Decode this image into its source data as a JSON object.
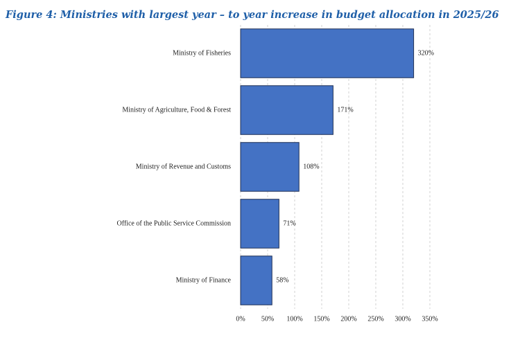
{
  "chart_data": {
    "type": "barh",
    "title": "Figure 4: Ministries with largest year – to year increase in budget allocation in 2025/26",
    "categories": [
      "Ministry of Fisheries",
      "Ministry of Agriculture, Food & Forest",
      "Ministry of Revenue and Customs",
      "Office of the Public Service Commission",
      "Ministry of Finance"
    ],
    "values": [
      320,
      171,
      108,
      71,
      58
    ],
    "value_labels": [
      "320%",
      "171%",
      "108%",
      "71%",
      "58%"
    ],
    "color": "#4472c4",
    "xlim": [
      0,
      350
    ],
    "xticks": [
      {
        "value": 0,
        "label": "0%"
      },
      {
        "value": 50,
        "label": "50%"
      },
      {
        "value": 100,
        "label": "100%"
      },
      {
        "value": 150,
        "label": "150%"
      },
      {
        "value": 200,
        "label": "200%"
      },
      {
        "value": 250,
        "label": "250%"
      },
      {
        "value": 300,
        "label": "300%"
      },
      {
        "value": 350,
        "label": "350%"
      }
    ],
    "grid": true
  }
}
